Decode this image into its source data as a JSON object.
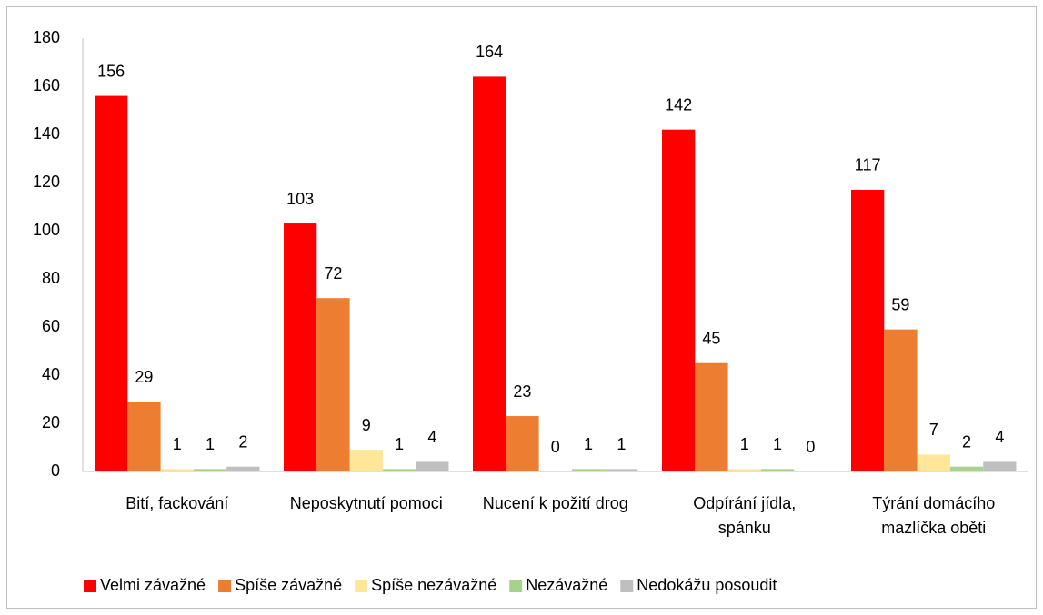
{
  "chart_data": {
    "type": "bar",
    "categories": [
      "Bití, fackování",
      "Neposkytnutí pomoci",
      "Nucení k požití drog",
      "Odpírání jídla, spánku",
      "Týrání domácího mazlíčka oběti"
    ],
    "series": [
      {
        "name": "Velmi závažné",
        "color": "#ff0000",
        "values": [
          156,
          103,
          164,
          142,
          117
        ]
      },
      {
        "name": "Spíše závažné",
        "color": "#ed7d31",
        "values": [
          29,
          72,
          23,
          45,
          59
        ]
      },
      {
        "name": "Spíše nezávažné",
        "color": "#ffe699",
        "values": [
          1,
          9,
          0,
          1,
          7
        ]
      },
      {
        "name": "Nezávažné",
        "color": "#a9d18e",
        "values": [
          1,
          1,
          1,
          1,
          2
        ]
      },
      {
        "name": "Nedokážu posoudit",
        "color": "#bfbfbf",
        "values": [
          2,
          4,
          1,
          0,
          4
        ]
      }
    ],
    "ylim": [
      0,
      180
    ],
    "yticks": [
      0,
      20,
      40,
      60,
      80,
      100,
      120,
      140,
      160,
      180
    ],
    "grid": false,
    "legend": "bottom"
  }
}
